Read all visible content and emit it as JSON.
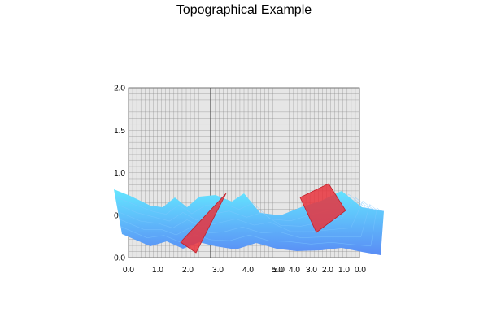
{
  "chart_data": {
    "type": "surface",
    "title": "Topographical Example",
    "grid": true,
    "back_wall_y_ticks": [
      "0.0",
      "0.5",
      "1.0",
      "1.5",
      "2.0"
    ],
    "floor_x_ticks_left": [
      "0.0",
      "1.0",
      "2.0",
      "3.0",
      "4.0",
      "5.0"
    ],
    "floor_x_ticks_right": [
      "5.0",
      "4.0",
      "3.0",
      "2.0",
      "1.0",
      "0.0"
    ],
    "surface_colors": {
      "top": "#64E6FF",
      "bottom": "#5A8CF5"
    },
    "polygons": [
      {
        "name": "red-triangle",
        "color": "#E8323C",
        "opacity": 0.85
      },
      {
        "name": "red-square",
        "color": "#E8323C",
        "opacity": 0.85
      }
    ]
  }
}
